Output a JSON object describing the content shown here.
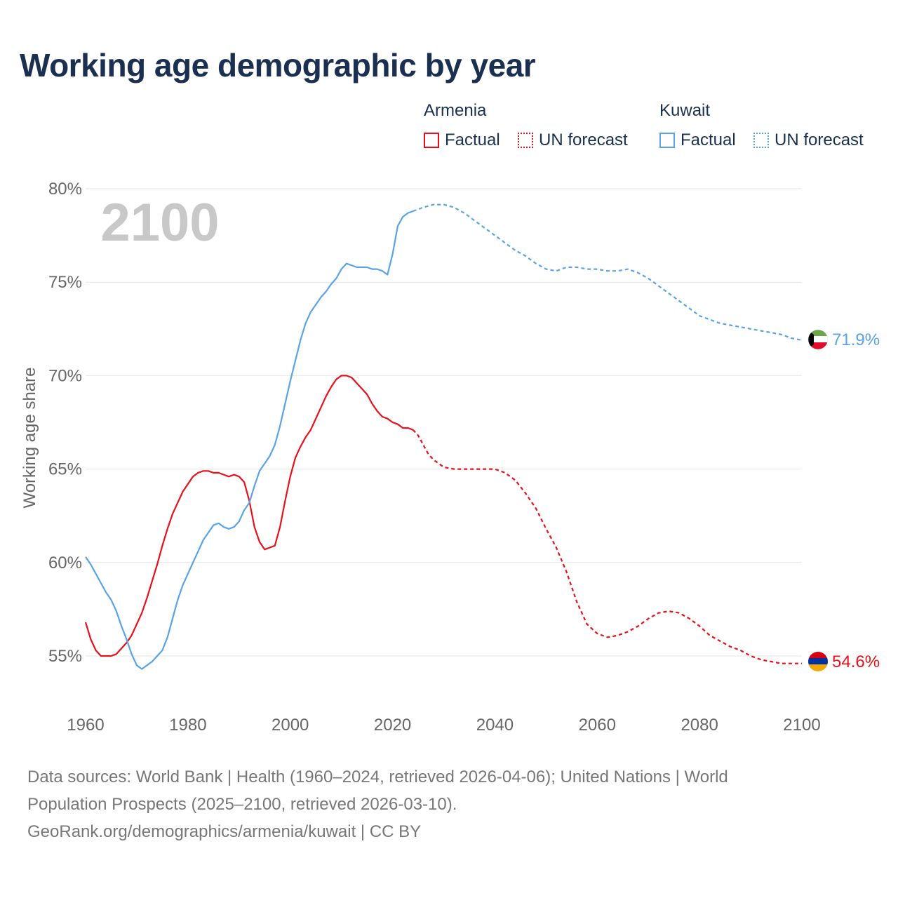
{
  "title": "Working age demographic by year",
  "legend": {
    "groups": [
      {
        "name": "Armenia",
        "factual": "Factual",
        "forecast": "UN forecast"
      },
      {
        "name": "Kuwait",
        "factual": "Factual",
        "forecast": "UN forecast"
      }
    ]
  },
  "year_watermark": "2100",
  "footer": {
    "line1": "Data sources: World Bank | Health (1960–2024, retrieved 2026-04-06); United Nations | World",
    "line2": "Population Prospects (2025–2100, retrieved 2026-03-10).",
    "line3": "GeoRank.org/demographics/armenia/kuwait | CC BY"
  },
  "colors": {
    "armenia": "#e8101a",
    "kuwait": "#5aa3e6",
    "title": "#1b3050",
    "grid": "#e6e6e6",
    "axis_text": "#666666",
    "watermark": "#c8c8c8"
  },
  "chart_data": {
    "type": "line",
    "title": "Working age demographic by year",
    "xlabel": "",
    "ylabel": "Working age share",
    "xlim": [
      1960,
      2100
    ],
    "ylim": [
      53,
      80
    ],
    "x_ticks": [
      1960,
      1980,
      2000,
      2020,
      2040,
      2060,
      2080,
      2100
    ],
    "y_ticks": [
      55,
      60,
      65,
      70,
      75,
      80
    ],
    "y_tick_labels": [
      "55%",
      "60%",
      "65%",
      "70%",
      "75%",
      "80%"
    ],
    "x_tick_labels": [
      "1960",
      "1980",
      "2000",
      "2020",
      "2040",
      "2060",
      "2080",
      "2100"
    ],
    "factual_end_year": 2024,
    "series": [
      {
        "name": "Armenia",
        "flag": "armenia-flag",
        "end_label": "54.6%",
        "points": [
          [
            1960,
            56.8
          ],
          [
            1961,
            55.9
          ],
          [
            1962,
            55.3
          ],
          [
            1963,
            55.0
          ],
          [
            1964,
            55.0
          ],
          [
            1965,
            55.0
          ],
          [
            1966,
            55.1
          ],
          [
            1967,
            55.4
          ],
          [
            1968,
            55.7
          ],
          [
            1969,
            56.1
          ],
          [
            1970,
            56.7
          ],
          [
            1971,
            57.3
          ],
          [
            1972,
            58.1
          ],
          [
            1973,
            59.0
          ],
          [
            1974,
            59.9
          ],
          [
            1975,
            60.9
          ],
          [
            1976,
            61.8
          ],
          [
            1977,
            62.6
          ],
          [
            1978,
            63.2
          ],
          [
            1979,
            63.8
          ],
          [
            1980,
            64.2
          ],
          [
            1981,
            64.6
          ],
          [
            1982,
            64.8
          ],
          [
            1983,
            64.9
          ],
          [
            1984,
            64.9
          ],
          [
            1985,
            64.8
          ],
          [
            1986,
            64.8
          ],
          [
            1987,
            64.7
          ],
          [
            1988,
            64.6
          ],
          [
            1989,
            64.7
          ],
          [
            1990,
            64.6
          ],
          [
            1991,
            64.3
          ],
          [
            1992,
            63.3
          ],
          [
            1993,
            61.9
          ],
          [
            1994,
            61.1
          ],
          [
            1995,
            60.7
          ],
          [
            1996,
            60.8
          ],
          [
            1997,
            60.9
          ],
          [
            1998,
            61.9
          ],
          [
            1999,
            63.3
          ],
          [
            2000,
            64.6
          ],
          [
            2001,
            65.6
          ],
          [
            2002,
            66.2
          ],
          [
            2003,
            66.7
          ],
          [
            2004,
            67.1
          ],
          [
            2005,
            67.7
          ],
          [
            2006,
            68.3
          ],
          [
            2007,
            68.9
          ],
          [
            2008,
            69.4
          ],
          [
            2009,
            69.8
          ],
          [
            2010,
            70.0
          ],
          [
            2011,
            70.0
          ],
          [
            2012,
            69.9
          ],
          [
            2013,
            69.6
          ],
          [
            2014,
            69.3
          ],
          [
            2015,
            69.0
          ],
          [
            2016,
            68.5
          ],
          [
            2017,
            68.1
          ],
          [
            2018,
            67.8
          ],
          [
            2019,
            67.7
          ],
          [
            2020,
            67.5
          ],
          [
            2021,
            67.4
          ],
          [
            2022,
            67.2
          ],
          [
            2023,
            67.2
          ],
          [
            2024,
            67.1
          ],
          [
            2025,
            66.8
          ],
          [
            2026,
            66.3
          ],
          [
            2027,
            65.8
          ],
          [
            2028,
            65.5
          ],
          [
            2029,
            65.3
          ],
          [
            2030,
            65.1
          ],
          [
            2032,
            65.0
          ],
          [
            2035,
            65.0
          ],
          [
            2038,
            65.0
          ],
          [
            2040,
            65.0
          ],
          [
            2042,
            64.8
          ],
          [
            2044,
            64.4
          ],
          [
            2046,
            63.7
          ],
          [
            2048,
            62.9
          ],
          [
            2050,
            61.8
          ],
          [
            2052,
            60.8
          ],
          [
            2054,
            59.5
          ],
          [
            2056,
            57.9
          ],
          [
            2058,
            56.7
          ],
          [
            2060,
            56.2
          ],
          [
            2062,
            56.0
          ],
          [
            2064,
            56.1
          ],
          [
            2066,
            56.3
          ],
          [
            2068,
            56.6
          ],
          [
            2070,
            57.0
          ],
          [
            2072,
            57.3
          ],
          [
            2074,
            57.4
          ],
          [
            2076,
            57.3
          ],
          [
            2078,
            57.0
          ],
          [
            2080,
            56.6
          ],
          [
            2082,
            56.1
          ],
          [
            2084,
            55.8
          ],
          [
            2086,
            55.5
          ],
          [
            2088,
            55.3
          ],
          [
            2090,
            55.0
          ],
          [
            2092,
            54.8
          ],
          [
            2094,
            54.7
          ],
          [
            2096,
            54.6
          ],
          [
            2098,
            54.6
          ],
          [
            2100,
            54.6
          ]
        ]
      },
      {
        "name": "Kuwait",
        "flag": "kuwait-flag",
        "end_label": "71.9%",
        "points": [
          [
            1960,
            60.3
          ],
          [
            1961,
            59.9
          ],
          [
            1962,
            59.4
          ],
          [
            1963,
            58.9
          ],
          [
            1964,
            58.4
          ],
          [
            1965,
            58.0
          ],
          [
            1966,
            57.4
          ],
          [
            1967,
            56.6
          ],
          [
            1968,
            55.9
          ],
          [
            1969,
            55.1
          ],
          [
            1970,
            54.5
          ],
          [
            1971,
            54.3
          ],
          [
            1972,
            54.5
          ],
          [
            1973,
            54.7
          ],
          [
            1974,
            55.0
          ],
          [
            1975,
            55.3
          ],
          [
            1976,
            56.0
          ],
          [
            1977,
            57.0
          ],
          [
            1978,
            58.0
          ],
          [
            1979,
            58.8
          ],
          [
            1980,
            59.4
          ],
          [
            1981,
            60.0
          ],
          [
            1982,
            60.6
          ],
          [
            1983,
            61.2
          ],
          [
            1984,
            61.6
          ],
          [
            1985,
            62.0
          ],
          [
            1986,
            62.1
          ],
          [
            1987,
            61.9
          ],
          [
            1988,
            61.8
          ],
          [
            1989,
            61.9
          ],
          [
            1990,
            62.2
          ],
          [
            1991,
            62.8
          ],
          [
            1992,
            63.2
          ],
          [
            1993,
            64.1
          ],
          [
            1994,
            64.9
          ],
          [
            1995,
            65.3
          ],
          [
            1996,
            65.7
          ],
          [
            1997,
            66.3
          ],
          [
            1998,
            67.3
          ],
          [
            1999,
            68.5
          ],
          [
            2000,
            69.7
          ],
          [
            2001,
            70.8
          ],
          [
            2002,
            71.9
          ],
          [
            2003,
            72.8
          ],
          [
            2004,
            73.4
          ],
          [
            2005,
            73.8
          ],
          [
            2006,
            74.2
          ],
          [
            2007,
            74.5
          ],
          [
            2008,
            74.9
          ],
          [
            2009,
            75.2
          ],
          [
            2010,
            75.7
          ],
          [
            2011,
            76.0
          ],
          [
            2012,
            75.9
          ],
          [
            2013,
            75.8
          ],
          [
            2014,
            75.8
          ],
          [
            2015,
            75.8
          ],
          [
            2016,
            75.7
          ],
          [
            2017,
            75.7
          ],
          [
            2018,
            75.6
          ],
          [
            2019,
            75.4
          ],
          [
            2020,
            76.5
          ],
          [
            2021,
            78.0
          ],
          [
            2022,
            78.5
          ],
          [
            2023,
            78.7
          ],
          [
            2024,
            78.8
          ],
          [
            2026,
            79.0
          ],
          [
            2028,
            79.15
          ],
          [
            2030,
            79.15
          ],
          [
            2032,
            79.0
          ],
          [
            2034,
            78.7
          ],
          [
            2036,
            78.3
          ],
          [
            2038,
            77.9
          ],
          [
            2040,
            77.5
          ],
          [
            2042,
            77.1
          ],
          [
            2044,
            76.7
          ],
          [
            2046,
            76.4
          ],
          [
            2048,
            76.0
          ],
          [
            2050,
            75.7
          ],
          [
            2052,
            75.6
          ],
          [
            2054,
            75.8
          ],
          [
            2056,
            75.8
          ],
          [
            2058,
            75.7
          ],
          [
            2060,
            75.7
          ],
          [
            2062,
            75.6
          ],
          [
            2064,
            75.6
          ],
          [
            2066,
            75.7
          ],
          [
            2068,
            75.5
          ],
          [
            2070,
            75.2
          ],
          [
            2072,
            74.8
          ],
          [
            2074,
            74.4
          ],
          [
            2076,
            74.0
          ],
          [
            2078,
            73.6
          ],
          [
            2080,
            73.2
          ],
          [
            2082,
            73.0
          ],
          [
            2084,
            72.8
          ],
          [
            2086,
            72.7
          ],
          [
            2088,
            72.6
          ],
          [
            2090,
            72.5
          ],
          [
            2092,
            72.4
          ],
          [
            2094,
            72.3
          ],
          [
            2096,
            72.2
          ],
          [
            2098,
            72.0
          ],
          [
            2100,
            71.9
          ]
        ]
      }
    ]
  }
}
